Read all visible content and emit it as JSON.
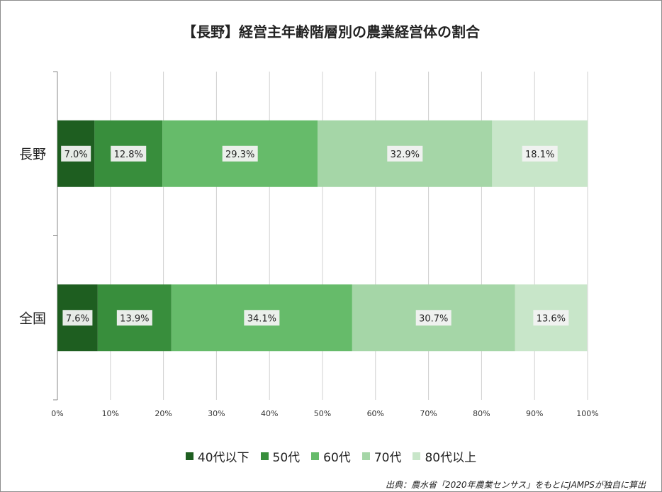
{
  "chart_data": {
    "type": "bar",
    "orientation": "horizontal",
    "stacked": true,
    "title": "【長野】経営主年齢階層別の農業経営体の割合",
    "categories": [
      "長野",
      "全国"
    ],
    "series": [
      {
        "name": "40代以下",
        "color": "#1e5e20",
        "values": [
          7.0,
          7.6
        ]
      },
      {
        "name": "50代",
        "color": "#388e3c",
        "values": [
          12.8,
          13.9
        ]
      },
      {
        "name": "60代",
        "color": "#66bb6a",
        "values": [
          29.3,
          34.1
        ]
      },
      {
        "name": "70代",
        "color": "#a5d6a7",
        "values": [
          32.9,
          30.7
        ]
      },
      {
        "name": "80代以上",
        "color": "#c8e6c9",
        "values": [
          18.1,
          13.6
        ]
      }
    ],
    "data_labels": [
      [
        "7.0%",
        "12.8%",
        "29.3%",
        "32.9%",
        "18.1%"
      ],
      [
        "7.6%",
        "13.9%",
        "34.1%",
        "30.7%",
        "13.6%"
      ]
    ],
    "xlim": [
      0,
      100
    ],
    "xticks": [
      0,
      10,
      20,
      30,
      40,
      50,
      60,
      70,
      80,
      90,
      100
    ],
    "xtick_labels": [
      "0%",
      "10%",
      "20%",
      "30%",
      "40%",
      "50%",
      "60%",
      "70%",
      "80%",
      "90%",
      "100%"
    ],
    "grid": true,
    "legend_position": "bottom",
    "source": "出典：農水省「2020年農業センサス」をもとにJAMPSが独自に算出"
  }
}
